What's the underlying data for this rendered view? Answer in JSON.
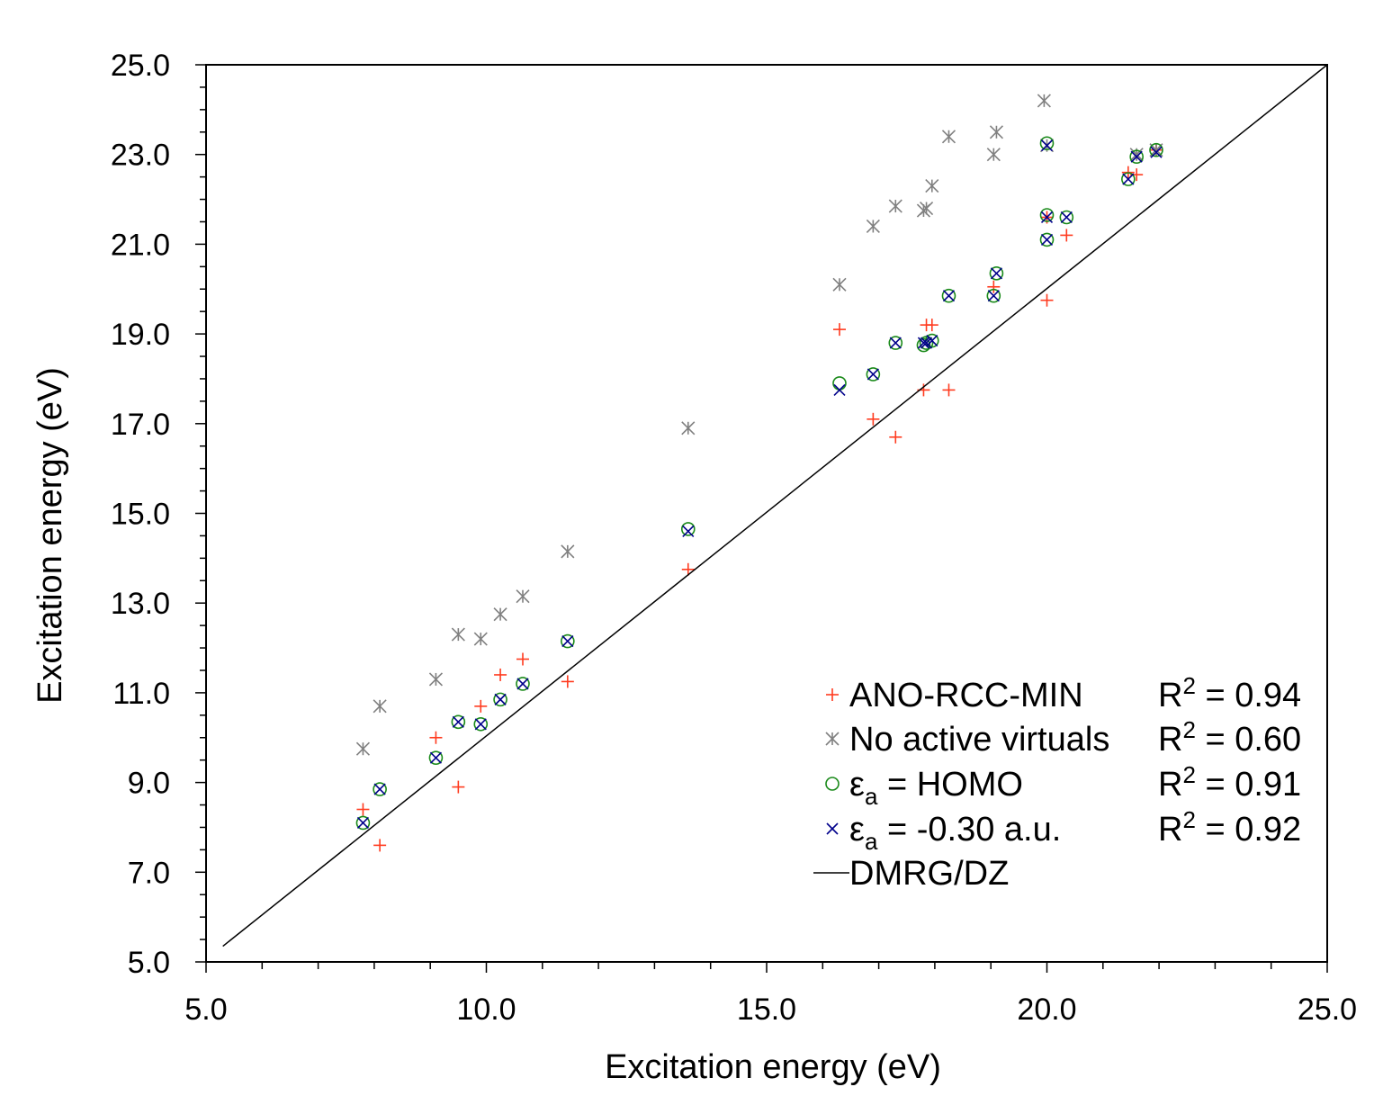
{
  "chart_data": {
    "type": "scatter",
    "xlabel": "Excitation energy (eV)",
    "ylabel": "Excitation energy (eV)",
    "xlim": [
      5.0,
      25.0
    ],
    "ylim": [
      5.0,
      25.0
    ],
    "x_ticks": [
      "5.0",
      "10.0",
      "15.0",
      "20.0",
      "25.0"
    ],
    "y_ticks": [
      "5.0",
      "7.0",
      "9.0",
      "11.0",
      "13.0",
      "15.0",
      "17.0",
      "19.0",
      "21.0",
      "23.0",
      "25.0"
    ],
    "colors": {
      "ano": "#ff3b1f",
      "noactive": "#808080",
      "homo": "#1a8a1a",
      "eps": "#00008b",
      "dmrg": "#000000"
    },
    "series": [
      {
        "name": "ANO-RCC-MIN",
        "key": "ano",
        "marker": "plus",
        "r2_label": "R",
        "r2_sup": "2",
        "r2_value": " = 0.94",
        "points": [
          [
            7.8,
            8.4
          ],
          [
            8.1,
            7.6
          ],
          [
            9.1,
            10.0
          ],
          [
            9.5,
            8.9
          ],
          [
            9.9,
            10.7
          ],
          [
            10.25,
            11.4
          ],
          [
            10.65,
            11.75
          ],
          [
            11.45,
            11.25
          ],
          [
            13.6,
            13.75
          ],
          [
            16.3,
            19.1
          ],
          [
            16.9,
            17.1
          ],
          [
            17.3,
            16.7
          ],
          [
            17.8,
            17.75
          ],
          [
            17.85,
            19.2
          ],
          [
            17.95,
            19.2
          ],
          [
            18.25,
            17.75
          ],
          [
            19.05,
            20.05
          ],
          [
            20.0,
            19.75
          ],
          [
            20.0,
            21.6
          ],
          [
            20.35,
            21.2
          ],
          [
            21.45,
            22.6
          ],
          [
            21.6,
            22.55
          ],
          [
            21.95,
            23.1
          ]
        ]
      },
      {
        "name": "No active virtuals",
        "key": "noactive",
        "marker": "asterisk",
        "r2_label": "R",
        "r2_sup": "2",
        "r2_value": " = 0.60",
        "points": [
          [
            7.8,
            9.75
          ],
          [
            8.1,
            10.7
          ],
          [
            9.1,
            11.3
          ],
          [
            9.5,
            12.3
          ],
          [
            9.9,
            12.2
          ],
          [
            10.25,
            12.75
          ],
          [
            10.65,
            13.15
          ],
          [
            11.45,
            14.15
          ],
          [
            13.6,
            16.9
          ],
          [
            16.3,
            20.1
          ],
          [
            16.9,
            21.4
          ],
          [
            17.3,
            21.85
          ],
          [
            17.8,
            21.75
          ],
          [
            17.85,
            21.8
          ],
          [
            17.95,
            22.3
          ],
          [
            18.25,
            23.4
          ],
          [
            19.05,
            23.0
          ],
          [
            19.1,
            23.5
          ],
          [
            19.95,
            24.2
          ],
          [
            20.0,
            23.2
          ],
          [
            21.6,
            23.0
          ],
          [
            21.95,
            23.1
          ]
        ]
      },
      {
        "name": "εa = HOMO",
        "key": "homo",
        "marker": "circle",
        "label_main": "ε",
        "label_sub": "a",
        "label_rest": " = HOMO",
        "r2_label": "R",
        "r2_sup": "2",
        "r2_value": " = 0.91",
        "points": [
          [
            7.8,
            8.1
          ],
          [
            8.1,
            8.85
          ],
          [
            9.1,
            9.55
          ],
          [
            9.5,
            10.35
          ],
          [
            9.9,
            10.3
          ],
          [
            10.25,
            10.85
          ],
          [
            10.65,
            11.2
          ],
          [
            11.45,
            12.15
          ],
          [
            13.6,
            14.65
          ],
          [
            16.3,
            17.9
          ],
          [
            16.9,
            18.1
          ],
          [
            17.3,
            18.8
          ],
          [
            17.8,
            18.75
          ],
          [
            17.85,
            18.8
          ],
          [
            17.95,
            18.85
          ],
          [
            18.25,
            19.85
          ],
          [
            19.05,
            19.85
          ],
          [
            19.1,
            20.35
          ],
          [
            20.0,
            21.1
          ],
          [
            20.0,
            21.65
          ],
          [
            20.0,
            23.25
          ],
          [
            20.35,
            21.6
          ],
          [
            21.45,
            22.45
          ],
          [
            21.6,
            22.95
          ],
          [
            21.95,
            23.1
          ]
        ]
      },
      {
        "name": "εa = -0.30 a.u.",
        "key": "eps",
        "marker": "cross",
        "label_main": "ε",
        "label_sub": "a",
        "label_rest": " = -0.30 a.u.",
        "r2_label": "R",
        "r2_sup": "2",
        "r2_value": " = 0.92",
        "points": [
          [
            7.8,
            8.1
          ],
          [
            8.1,
            8.85
          ],
          [
            9.1,
            9.55
          ],
          [
            9.5,
            10.35
          ],
          [
            9.9,
            10.3
          ],
          [
            10.25,
            10.85
          ],
          [
            10.65,
            11.2
          ],
          [
            11.45,
            12.15
          ],
          [
            13.6,
            14.6
          ],
          [
            16.3,
            17.75
          ],
          [
            16.9,
            18.1
          ],
          [
            17.3,
            18.8
          ],
          [
            17.8,
            18.8
          ],
          [
            17.85,
            18.8
          ],
          [
            17.95,
            18.85
          ],
          [
            18.25,
            19.85
          ],
          [
            19.05,
            19.85
          ],
          [
            19.1,
            20.35
          ],
          [
            20.0,
            21.1
          ],
          [
            20.0,
            21.6
          ],
          [
            20.0,
            23.2
          ],
          [
            20.35,
            21.6
          ],
          [
            21.45,
            22.45
          ],
          [
            21.6,
            22.95
          ],
          [
            21.95,
            23.05
          ]
        ]
      },
      {
        "name": "DMRG/DZ",
        "key": "dmrg",
        "marker": "line",
        "points": [
          [
            5.3,
            5.35
          ],
          [
            25.0,
            25.0
          ]
        ]
      }
    ],
    "legend_location": "bottom-right",
    "grid": false
  }
}
